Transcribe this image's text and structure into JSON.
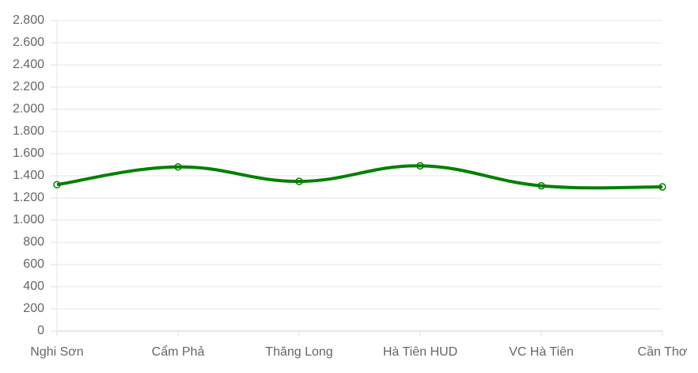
{
  "chart_data": {
    "type": "line",
    "categories": [
      "Nghi Sơn",
      "Cẩm Phả",
      "Thăng Long",
      "Hà Tiên HUD",
      "VC Hà Tiên",
      "Cần Thơ"
    ],
    "series": [
      {
        "name": null,
        "color": "#008000",
        "values": [
          1320,
          1480,
          1350,
          1490,
          1310,
          1300
        ]
      }
    ],
    "ylim": [
      0,
      2800
    ],
    "yticks": [
      0,
      200,
      400,
      600,
      800,
      {
        "value": 1000,
        "label": "1.000"
      },
      {
        "value": 1200,
        "label": "1.200"
      },
      {
        "value": 1400,
        "label": "1.400"
      },
      {
        "value": 1600,
        "label": "1.600"
      },
      {
        "value": 1800,
        "label": "1.800"
      },
      {
        "value": 2000,
        "label": "2.000"
      },
      {
        "value": 2200,
        "label": "2.200"
      },
      {
        "value": 2400,
        "label": "2.400"
      },
      {
        "value": 2600,
        "label": "2.600"
      },
      {
        "value": 2800,
        "label": "2.800"
      }
    ],
    "grid": true
  }
}
